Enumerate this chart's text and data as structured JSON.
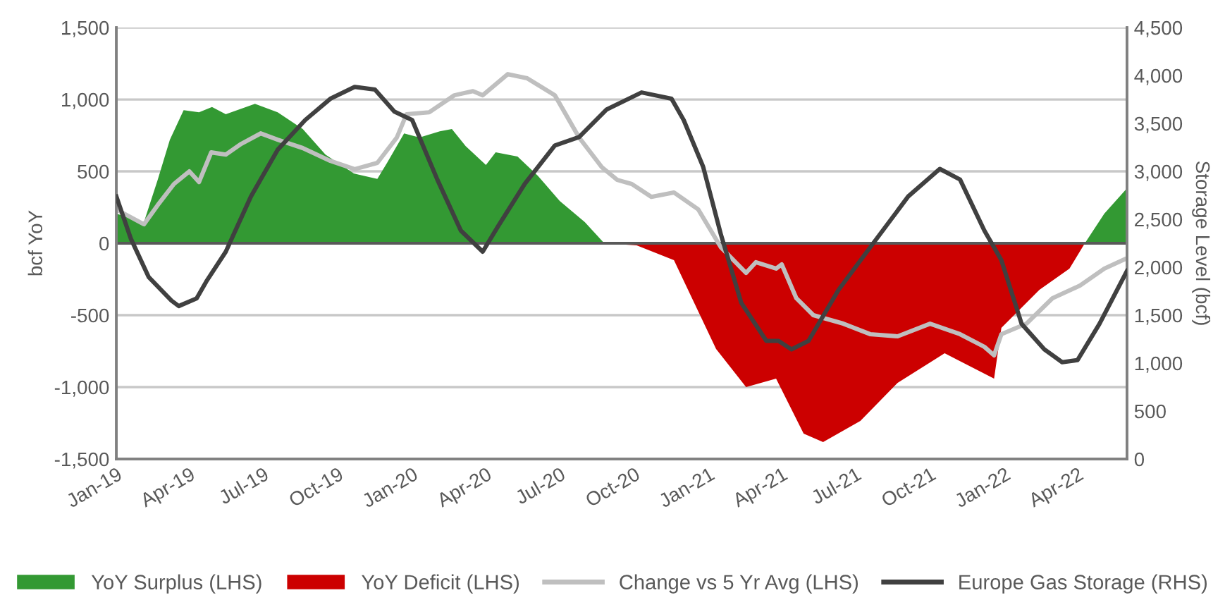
{
  "chart_data": {
    "type": "area",
    "ylabel": "bcf YoY",
    "y2label": "Storage Level (bcf)",
    "xlim": [
      "2019-01-01",
      "2022-06-01"
    ],
    "xticks": [
      {
        "value": "2019-01-01",
        "label": "Jan-19"
      },
      {
        "value": "2019-04-01",
        "label": "Apr-19"
      },
      {
        "value": "2019-07-01",
        "label": "Jul-19"
      },
      {
        "value": "2019-10-01",
        "label": "Oct-19"
      },
      {
        "value": "2020-01-01",
        "label": "Jan-20"
      },
      {
        "value": "2020-04-01",
        "label": "Apr-20"
      },
      {
        "value": "2020-07-01",
        "label": "Jul-20"
      },
      {
        "value": "2020-10-01",
        "label": "Oct-20"
      },
      {
        "value": "2021-01-01",
        "label": "Jan-21"
      },
      {
        "value": "2021-04-01",
        "label": "Apr-21"
      },
      {
        "value": "2021-07-01",
        "label": "Jul-21"
      },
      {
        "value": "2021-10-01",
        "label": "Oct-21"
      },
      {
        "value": "2022-01-01",
        "label": "Jan-22"
      },
      {
        "value": "2022-04-01",
        "label": "Apr-22"
      }
    ],
    "ylim": [
      -1500,
      1500
    ],
    "yticks": [
      {
        "value": -1500,
        "label": "-1,500"
      },
      {
        "value": -1000,
        "label": "-1,000"
      },
      {
        "value": -500,
        "label": "-500"
      },
      {
        "value": 0,
        "label": "0"
      },
      {
        "value": 500,
        "label": "500"
      },
      {
        "value": 1000,
        "label": "1,000"
      },
      {
        "value": 1500,
        "label": "1,500"
      }
    ],
    "y2lim": [
      0,
      4500
    ],
    "y2ticks": [
      {
        "value": 0,
        "label": "0"
      },
      {
        "value": 500,
        "label": "500"
      },
      {
        "value": 1000,
        "label": "1,000"
      },
      {
        "value": 1500,
        "label": "1,500"
      },
      {
        "value": 2000,
        "label": "2,000"
      },
      {
        "value": 2500,
        "label": "2,500"
      },
      {
        "value": 3000,
        "label": "3,000"
      },
      {
        "value": 3500,
        "label": "3,500"
      },
      {
        "value": 4000,
        "label": "4,000"
      },
      {
        "value": 4500,
        "label": "4,500"
      }
    ],
    "grid": "y",
    "legend": "bottom",
    "line_style": "solid",
    "marker": "none",
    "ref_lines": [
      {
        "axis": "y",
        "value": 0,
        "color": "#595959"
      }
    ],
    "series": [
      {
        "name": "YoY Surplus (LHS)",
        "color": "#339933",
        "x": [
          "2019-01-01",
          "2019-02-04",
          "2019-02-21",
          "2019-03-08",
          "2019-03-25",
          "2019-04-13",
          "2019-04-29",
          "2019-05-16",
          "2019-06-21",
          "2019-07-19",
          "2019-08-19",
          "2019-09-16",
          "2019-10-21",
          "2019-11-19",
          "2019-12-01",
          "2019-12-22",
          "2020-01-10",
          "2020-02-04",
          "2020-02-19",
          "2020-03-07",
          "2020-04-01",
          "2020-04-13",
          "2020-05-10",
          "2020-06-04",
          "2020-07-01",
          "2020-08-01",
          "2020-08-25",
          "2022-04-10",
          "2022-05-04",
          "2022-06-01"
        ],
        "values": [
          206,
          147,
          441,
          720,
          926,
          911,
          947,
          897,
          970,
          911,
          794,
          617,
          485,
          447,
          559,
          764,
          735,
          779,
          794,
          676,
          544,
          632,
          603,
          470,
          294,
          147,
          0,
          0,
          206,
          382
        ]
      },
      {
        "name": "YoY Deficit (LHS)",
        "color": "#cc0000",
        "x": [
          "2020-08-25",
          "2020-10-04",
          "2020-11-19",
          "2021-01-10",
          "2021-02-16",
          "2021-03-25",
          "2021-04-28",
          "2021-05-22",
          "2021-07-07",
          "2021-08-22",
          "2021-10-19",
          "2021-12-19",
          "2021-12-28",
          "2022-02-13",
          "2022-03-22",
          "2022-04-10"
        ],
        "values": [
          0,
          -15,
          -118,
          -735,
          -1000,
          -941,
          -1323,
          -1382,
          -1235,
          -970,
          -765,
          -941,
          -588,
          -323,
          -176,
          0
        ]
      },
      {
        "name": "Change vs 5 Yr Avg (LHS)",
        "type": "line",
        "color": "#bfbfbf",
        "x": [
          "2019-01-01",
          "2019-02-04",
          "2019-02-21",
          "2019-03-13",
          "2019-04-01",
          "2019-04-13",
          "2019-04-28",
          "2019-05-16",
          "2019-06-04",
          "2019-06-28",
          "2019-07-19",
          "2019-08-19",
          "2019-09-22",
          "2019-10-22",
          "2019-11-19",
          "2019-12-13",
          "2019-12-25",
          "2020-01-22",
          "2020-02-22",
          "2020-03-16",
          "2020-03-28",
          "2020-04-28",
          "2020-05-22",
          "2020-06-25",
          "2020-07-25",
          "2020-08-22",
          "2020-09-10",
          "2020-09-28",
          "2020-10-22",
          "2020-11-19",
          "2020-12-19",
          "2021-01-16",
          "2021-02-16",
          "2021-02-28",
          "2021-03-25",
          "2021-04-01",
          "2021-04-19",
          "2021-05-10",
          "2021-06-16",
          "2021-07-19",
          "2021-08-22",
          "2021-10-01",
          "2021-11-07",
          "2021-12-07",
          "2021-12-19",
          "2021-12-28",
          "2022-01-28",
          "2022-03-01",
          "2022-04-04",
          "2022-05-04",
          "2022-06-01"
        ],
        "values": [
          235,
          132,
          265,
          412,
          500,
          426,
          632,
          617,
          691,
          764,
          720,
          662,
          573,
          515,
          559,
          735,
          897,
          911,
          1029,
          1058,
          1029,
          1176,
          1147,
          1029,
          735,
          529,
          441,
          412,
          323,
          353,
          235,
          -29,
          -206,
          -132,
          -176,
          -147,
          -382,
          -500,
          -559,
          -632,
          -647,
          -559,
          -632,
          -720,
          -779,
          -632,
          -559,
          -382,
          -294,
          -176,
          -103
        ]
      },
      {
        "name": "Europe Gas Storage (RHS)",
        "type": "line",
        "axis": "y2",
        "color": "#404040",
        "x": [
          "2019-01-01",
          "2019-01-19",
          "2019-02-10",
          "2019-03-10",
          "2019-03-19",
          "2019-04-10",
          "2019-04-22",
          "2019-05-16",
          "2019-06-16",
          "2019-07-19",
          "2019-08-22",
          "2019-09-22",
          "2019-10-22",
          "2019-11-16",
          "2019-12-10",
          "2020-01-01",
          "2020-02-01",
          "2020-03-01",
          "2020-03-28",
          "2020-04-16",
          "2020-05-19",
          "2020-06-25",
          "2020-07-25",
          "2020-08-28",
          "2020-10-10",
          "2020-11-16",
          "2020-12-01",
          "2020-12-25",
          "2021-01-16",
          "2021-02-10",
          "2021-03-13",
          "2021-03-28",
          "2021-04-13",
          "2021-05-04",
          "2021-06-10",
          "2021-07-19",
          "2021-09-04",
          "2021-10-13",
          "2021-11-07",
          "2021-12-07",
          "2021-12-28",
          "2022-01-22",
          "2022-02-19",
          "2022-03-13",
          "2022-04-01",
          "2022-04-28",
          "2022-06-01"
        ],
        "values": [
          2738,
          2295,
          1896,
          1652,
          1595,
          1675,
          1852,
          2162,
          2738,
          3225,
          3535,
          3757,
          3881,
          3854,
          3624,
          3535,
          2915,
          2383,
          2162,
          2428,
          2871,
          3269,
          3358,
          3646,
          3823,
          3757,
          3535,
          3048,
          2339,
          1630,
          1232,
          1232,
          1143,
          1232,
          1763,
          2206,
          2738,
          3026,
          2915,
          2383,
          2073,
          1409,
          1143,
          1010,
          1032,
          1409,
          1962
        ]
      }
    ]
  }
}
